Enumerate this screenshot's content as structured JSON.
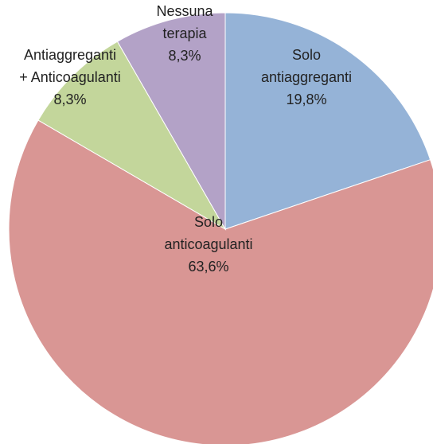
{
  "chart_data": {
    "type": "pie",
    "categories": [
      "Solo\nantiaggreganti",
      "Solo\nanticoagulanti",
      "Antiaggreganti\n+ Anticoagulanti",
      "Nessuna\nterapia"
    ],
    "values": [
      19.8,
      63.6,
      8.3,
      8.3
    ],
    "value_labels": [
      "19,8%",
      "63,6%",
      "8,3%",
      "8,3%"
    ],
    "colors": [
      "#95b3d7",
      "#d99694",
      "#c3d69b",
      "#b3a2c7"
    ]
  }
}
